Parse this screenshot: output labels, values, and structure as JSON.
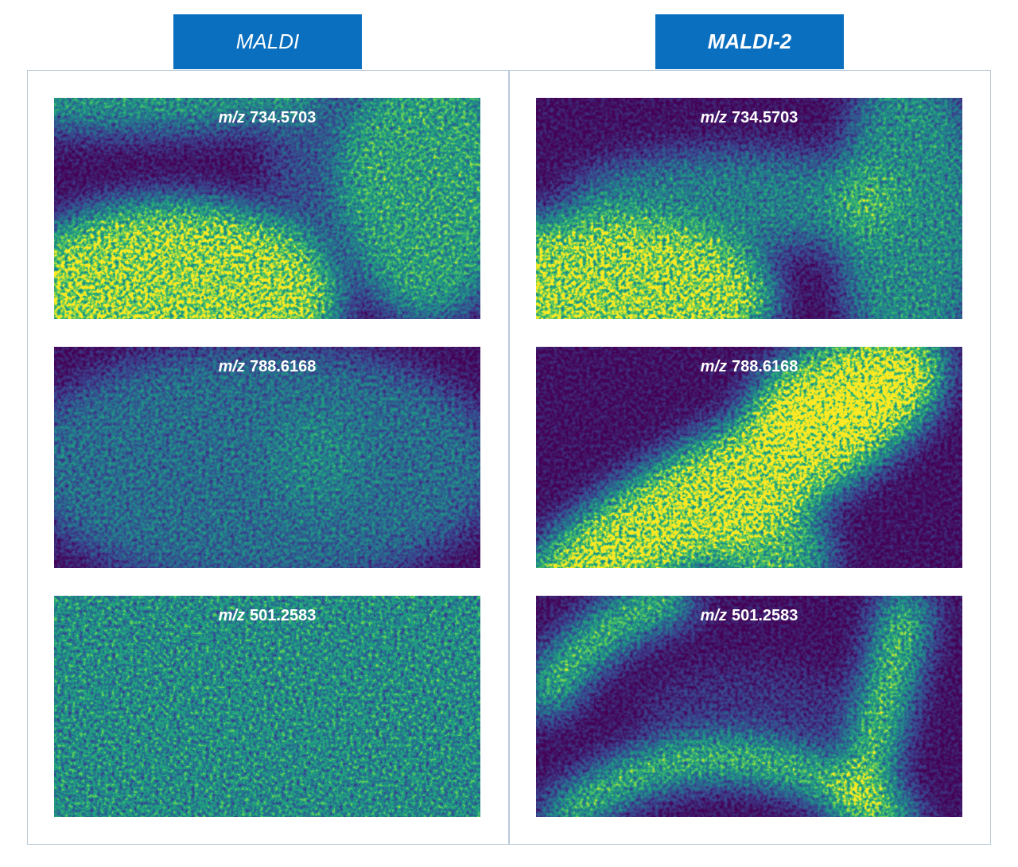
{
  "columns": [
    {
      "header": "MALDI",
      "panels": [
        {
          "label_prefix": "m/z",
          "label": "734.5703"
        },
        {
          "label_prefix": "m/z",
          "label": "788.6168"
        },
        {
          "label_prefix": "m/z",
          "label": "501.2583"
        }
      ]
    },
    {
      "header": "MALDI-2",
      "panels": [
        {
          "label_prefix": "m/z",
          "label": "734.5703"
        },
        {
          "label_prefix": "m/z",
          "label": "788.6168"
        },
        {
          "label_prefix": "m/z",
          "label": "501.2583"
        }
      ]
    }
  ]
}
